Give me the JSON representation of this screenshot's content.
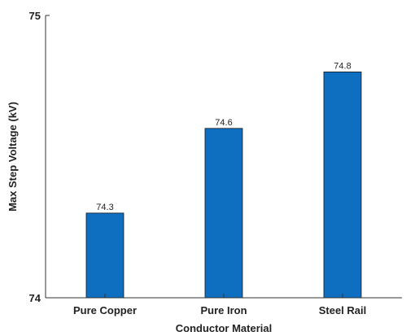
{
  "chart_data": {
    "type": "bar",
    "title": "",
    "xlabel": "Conductor Material",
    "ylabel": "Max Step Voltage (kV)",
    "categories": [
      "Pure Copper",
      "Pure Iron",
      "Steel Rail"
    ],
    "values": [
      74.3,
      74.6,
      74.8
    ],
    "value_labels": [
      "74.3",
      "74.6",
      "74.8"
    ],
    "ylim": [
      74,
      75
    ],
    "y_ticks": [
      74,
      75
    ],
    "y_tick_labels": [
      "74",
      "75"
    ],
    "grid": false,
    "legend": "none",
    "bar_color": "#0e6fc1"
  }
}
